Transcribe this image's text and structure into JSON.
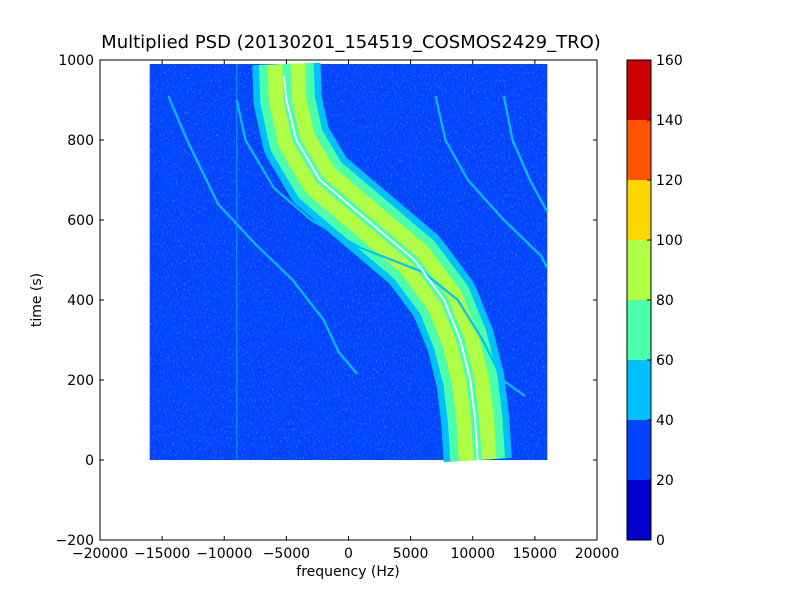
{
  "chart_data": {
    "type": "heatmap",
    "title": "Multiplied PSD (20130201_154519_COSMOS2429_TRO)",
    "xlabel": "frequency (Hz)",
    "ylabel": "time (s)",
    "xlim": [
      -20000,
      20000
    ],
    "ylim": [
      -200,
      1000
    ],
    "xticks": [
      -20000,
      -15000,
      -10000,
      -5000,
      0,
      5000,
      10000,
      15000,
      20000
    ],
    "yticks": [
      -200,
      0,
      200,
      400,
      600,
      800,
      1000
    ],
    "grid": false,
    "data_extent": {
      "freq_min": -16000,
      "freq_max": 16000,
      "time_min": 0,
      "time_max": 990
    },
    "background_level": 25,
    "traces": [
      {
        "kind": "main-band",
        "points": [
          [
            -5000,
            990
          ],
          [
            -4900,
            900
          ],
          [
            -4200,
            800
          ],
          [
            -2300,
            700
          ],
          [
            1500,
            600
          ],
          [
            5300,
            500
          ],
          [
            7700,
            400
          ],
          [
            9000,
            300
          ],
          [
            9800,
            200
          ],
          [
            10200,
            100
          ],
          [
            10400,
            0
          ]
        ],
        "band_width": 5500,
        "level": 75
      },
      {
        "kind": "main-center",
        "points": [
          [
            -5200,
            960
          ],
          [
            -5000,
            900
          ],
          [
            -4200,
            800
          ],
          [
            -2300,
            700
          ],
          [
            1500,
            600
          ],
          [
            5300,
            500
          ],
          [
            7700,
            400
          ],
          [
            9000,
            300
          ],
          [
            9800,
            200
          ],
          [
            10200,
            100
          ],
          [
            10400,
            0
          ]
        ],
        "level": 140
      },
      {
        "kind": "satellite",
        "points": [
          [
            -14500,
            910
          ],
          [
            -13000,
            800
          ],
          [
            -10500,
            640
          ],
          [
            -7500,
            540
          ],
          [
            -4500,
            450
          ],
          [
            -2000,
            350
          ],
          [
            -800,
            270
          ],
          [
            700,
            215
          ]
        ],
        "level": 55
      },
      {
        "kind": "satellite",
        "points": [
          [
            -9000,
            900
          ],
          [
            -8300,
            800
          ],
          [
            -6000,
            680
          ],
          [
            -3000,
            600
          ],
          [
            1000,
            530
          ],
          [
            6000,
            470
          ],
          [
            8800,
            400
          ],
          [
            10800,
            300
          ],
          [
            12400,
            200
          ],
          [
            14200,
            160
          ]
        ],
        "level": 55
      },
      {
        "kind": "satellite",
        "points": [
          [
            7000,
            910
          ],
          [
            7800,
            800
          ],
          [
            9600,
            700
          ],
          [
            12500,
            600
          ],
          [
            15500,
            510
          ],
          [
            16000,
            480
          ]
        ],
        "level": 55
      },
      {
        "kind": "satellite",
        "points": [
          [
            12500,
            910
          ],
          [
            13200,
            800
          ],
          [
            14600,
            700
          ],
          [
            16000,
            620
          ]
        ],
        "level": 55
      }
    ],
    "colorbar": {
      "ticks": [
        0,
        20,
        40,
        60,
        80,
        100,
        120,
        140,
        160
      ],
      "levels": [
        {
          "range": [
            0,
            20
          ],
          "color": "#0000cd"
        },
        {
          "range": [
            20,
            40
          ],
          "color": "#0044ff"
        },
        {
          "range": [
            40,
            60
          ],
          "color": "#00c0ff"
        },
        {
          "range": [
            60,
            80
          ],
          "color": "#4cffaa"
        },
        {
          "range": [
            80,
            100
          ],
          "color": "#b0ff46"
        },
        {
          "range": [
            100,
            120
          ],
          "color": "#ffd700"
        },
        {
          "range": [
            120,
            140
          ],
          "color": "#ff5500"
        },
        {
          "range": [
            140,
            160
          ],
          "color": "#cc0000"
        }
      ]
    }
  }
}
